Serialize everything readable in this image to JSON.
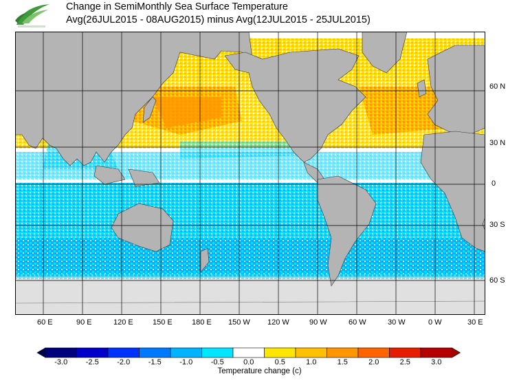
{
  "header": {
    "title_line1": "Change in SemiMonthly Sea Surface Temperature",
    "title_line2": "Avg(26JUL2015 - 08AUG2015) minus Avg(12JUL2015 - 25JUL2015)"
  },
  "map": {
    "lon_labels": [
      "60 E",
      "90 E",
      "120 E",
      "150 E",
      "180 E",
      "150 W",
      "120 W",
      "90 W",
      "60 W",
      "30 W",
      "0 W",
      "30 E"
    ],
    "lat_labels": [
      "60 N",
      "30 N",
      "0",
      "30 S",
      "60 S"
    ],
    "colors": {
      "land": "#b4b4b4",
      "ice": "#e0e0e0",
      "ocean": "#ffffff",
      "grid": "#000000"
    }
  },
  "colorbar": {
    "title": "Temperature change  (c)",
    "tick_labels": [
      "-3.0",
      "-2.5",
      "-2.0",
      "-1.5",
      "-1.0",
      "-0.5",
      "0.0",
      "0.5",
      "1.0",
      "1.5",
      "2.0",
      "2.5",
      "3.0"
    ],
    "colors": [
      "#00007c",
      "#0000c8",
      "#0032ff",
      "#0078ff",
      "#00b4ff",
      "#00e6ff",
      "#ffffff",
      "#ffe600",
      "#ffc000",
      "#ff9600",
      "#ff6400",
      "#e61e00",
      "#b40000"
    ],
    "under_color": "#000050",
    "over_color": "#a00000"
  }
}
